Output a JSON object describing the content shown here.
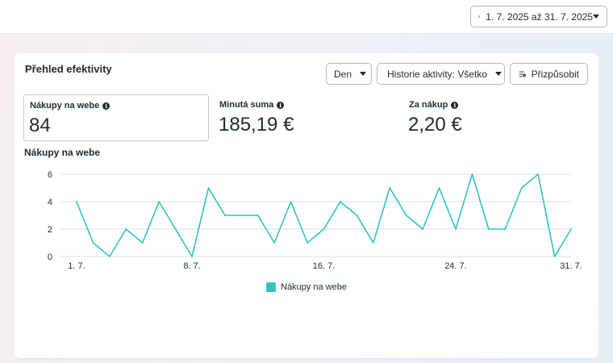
{
  "topbar": {
    "date_range": "1. 7. 2025 až 31. 7. 2025",
    "calendar_icon": "calendar-icon"
  },
  "card": {
    "title": "Přehled efektivity",
    "controls": {
      "granularity": "Den",
      "activity_history": "Historie aktivity: Všetko",
      "customize": "Přizpůsobit",
      "customize_icon": "customize-sliders-icon"
    },
    "metrics": [
      {
        "label": "Nákupy na webe",
        "value": "84",
        "selected": true
      },
      {
        "label": "Minutá suma",
        "value": "185,19 €",
        "selected": false
      },
      {
        "label": "Za nákup",
        "value": "2,20 €",
        "selected": false
      }
    ],
    "chart_title": "Nákupy na webe"
  },
  "chart_data": {
    "type": "line",
    "title": "Nákupy na webe",
    "x": [
      1,
      2,
      3,
      4,
      5,
      6,
      7,
      8,
      9,
      10,
      11,
      12,
      13,
      14,
      15,
      16,
      17,
      18,
      19,
      20,
      21,
      22,
      23,
      24,
      25,
      26,
      27,
      28,
      29,
      30,
      31
    ],
    "x_tick_values": [
      1,
      8,
      16,
      24,
      31
    ],
    "x_tick_labels": [
      "1. 7.",
      "8. 7.",
      "16. 7.",
      "24. 7.",
      "31. 7."
    ],
    "ylim": [
      0,
      6
    ],
    "y_ticks": [
      0,
      2,
      4,
      6
    ],
    "grid": true,
    "legend_position": "bottom-center",
    "series": [
      {
        "name": "Nákupy na webe",
        "color": "#2ec4c4",
        "values": [
          4,
          1,
          0,
          2,
          1,
          4,
          2,
          0,
          5,
          3,
          3,
          3,
          1,
          4,
          1,
          2,
          4,
          3,
          1,
          5,
          3,
          2,
          5,
          2,
          6,
          2,
          2,
          5,
          6,
          0,
          2
        ]
      }
    ]
  },
  "colors": {
    "series": "#2ec4c4",
    "grid": "#dcdfe3",
    "text": "#1c2b33"
  }
}
